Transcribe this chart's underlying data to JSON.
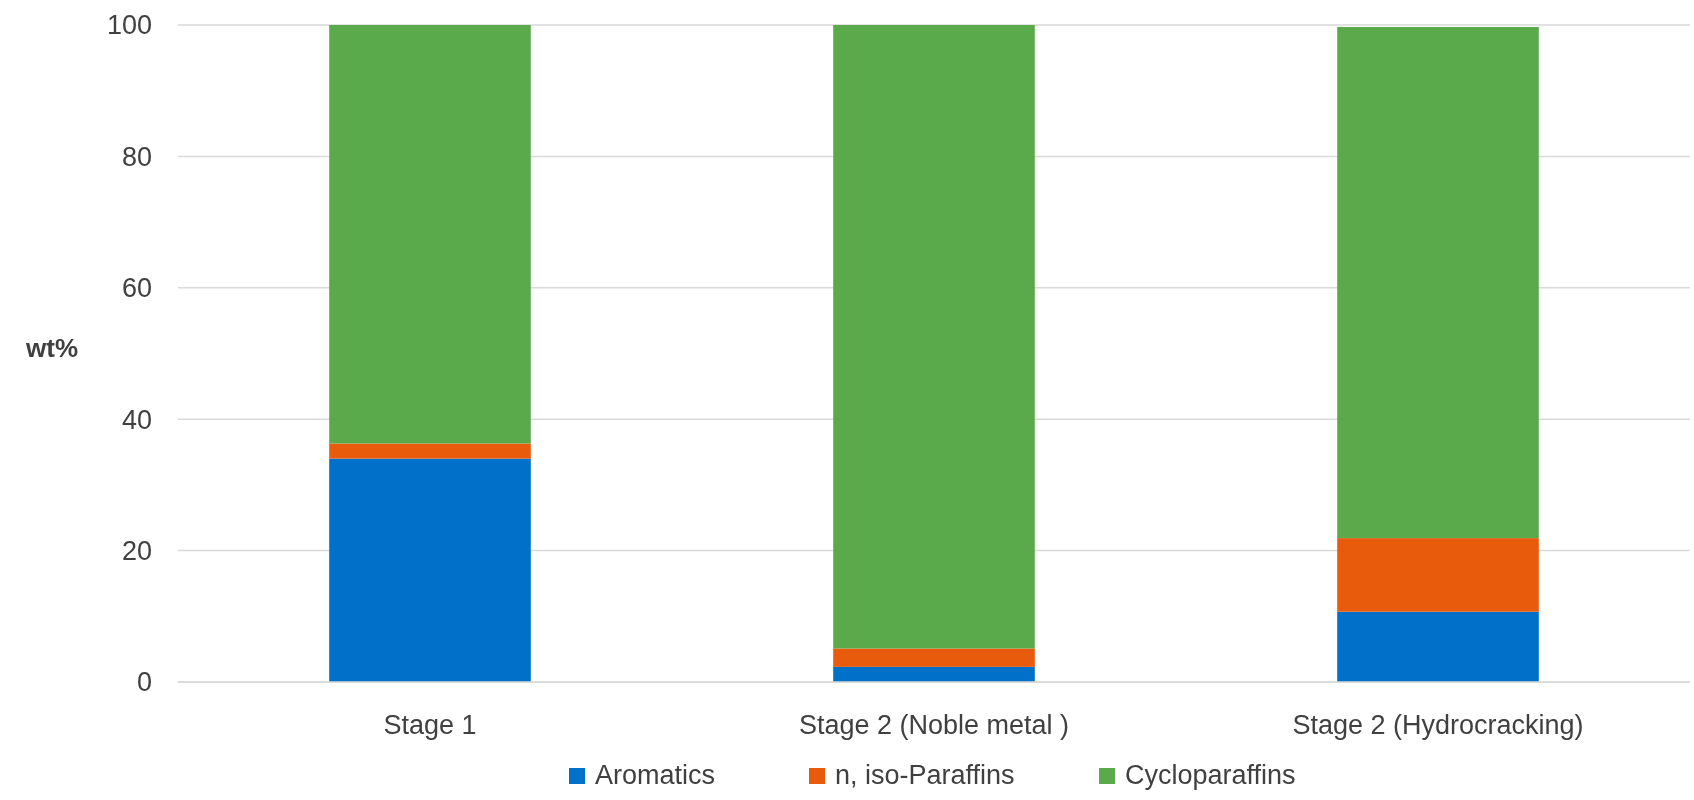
{
  "chart_data": {
    "type": "bar",
    "stacked": true,
    "ylabel": "wt%",
    "categories": [
      "Stage 1",
      "Stage 2 (Noble metal )",
      "Stage 2 (Hydrocracking)"
    ],
    "series": [
      {
        "name": "Aromatics",
        "color": "#0070c8",
        "values": [
          34,
          2.3,
          10.7
        ]
      },
      {
        "name": "n, iso-Paraffins",
        "color": "#e85a0c",
        "values": [
          2.3,
          2.8,
          11.2
        ]
      },
      {
        "name": "Cycloparaffins",
        "color": "#5aaa4c",
        "values": [
          63.7,
          94.9,
          77.8
        ]
      }
    ],
    "ylim": [
      0,
      100
    ],
    "yticks": [
      0,
      20,
      40,
      60,
      80,
      100
    ],
    "grid": "y",
    "legend": "bottom"
  }
}
